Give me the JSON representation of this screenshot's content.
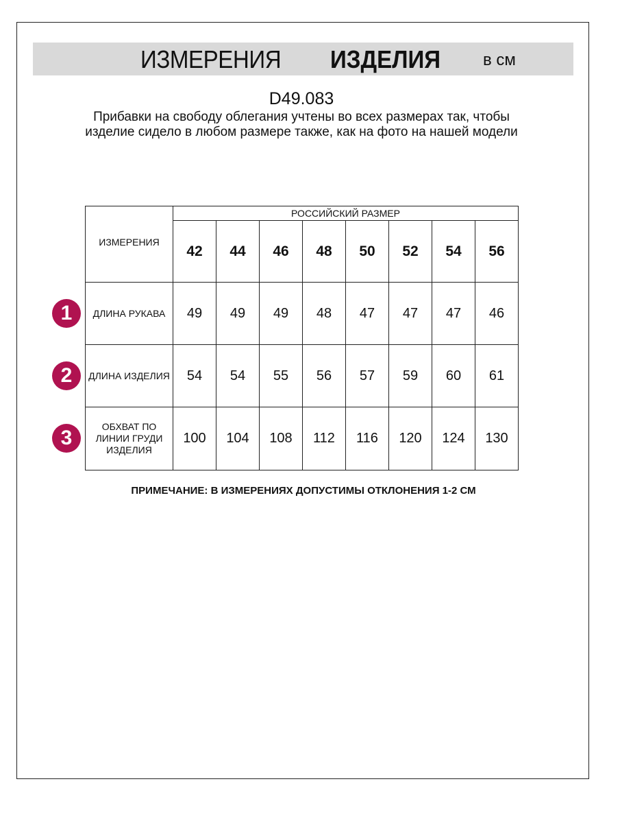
{
  "header": {
    "title_regular": "ИЗМЕРЕНИЯ",
    "title_bold": "ИЗДЕЛИЯ",
    "unit": "в см"
  },
  "article": "D49.083",
  "description": "Прибавки на свободу облегания учтены во всех размерах так, чтобы изделие сидело в любом размере также, как на фото на нашей модели",
  "table": {
    "corner": "ИЗМЕРЕНИЯ",
    "group_header": "РОССИЙСКИЙ РАЗМЕР",
    "sizes": [
      "42",
      "44",
      "46",
      "48",
      "50",
      "52",
      "54",
      "56"
    ],
    "rows": [
      {
        "badge": "1",
        "label": "ДЛИНА РУКАВА",
        "values": [
          "49",
          "49",
          "49",
          "48",
          "47",
          "47",
          "47",
          "46"
        ]
      },
      {
        "badge": "2",
        "label": "ДЛИНА ИЗДЕЛИЯ",
        "values": [
          "54",
          "54",
          "55",
          "56",
          "57",
          "59",
          "60",
          "61"
        ]
      },
      {
        "badge": "3",
        "label": "ОБХВАТ ПО ЛИНИИ ГРУДИ ИЗДЕЛИЯ",
        "values": [
          "100",
          "104",
          "108",
          "112",
          "116",
          "120",
          "124",
          "130"
        ]
      }
    ]
  },
  "note": "ПРИМЕЧАНИЕ: В ИЗМЕРЕНИЯХ ДОПУСТИМЫ ОТКЛОНЕНИЯ 1-2 СМ",
  "colors": {
    "badge": "#b01250",
    "band": "#d9d9d9"
  }
}
